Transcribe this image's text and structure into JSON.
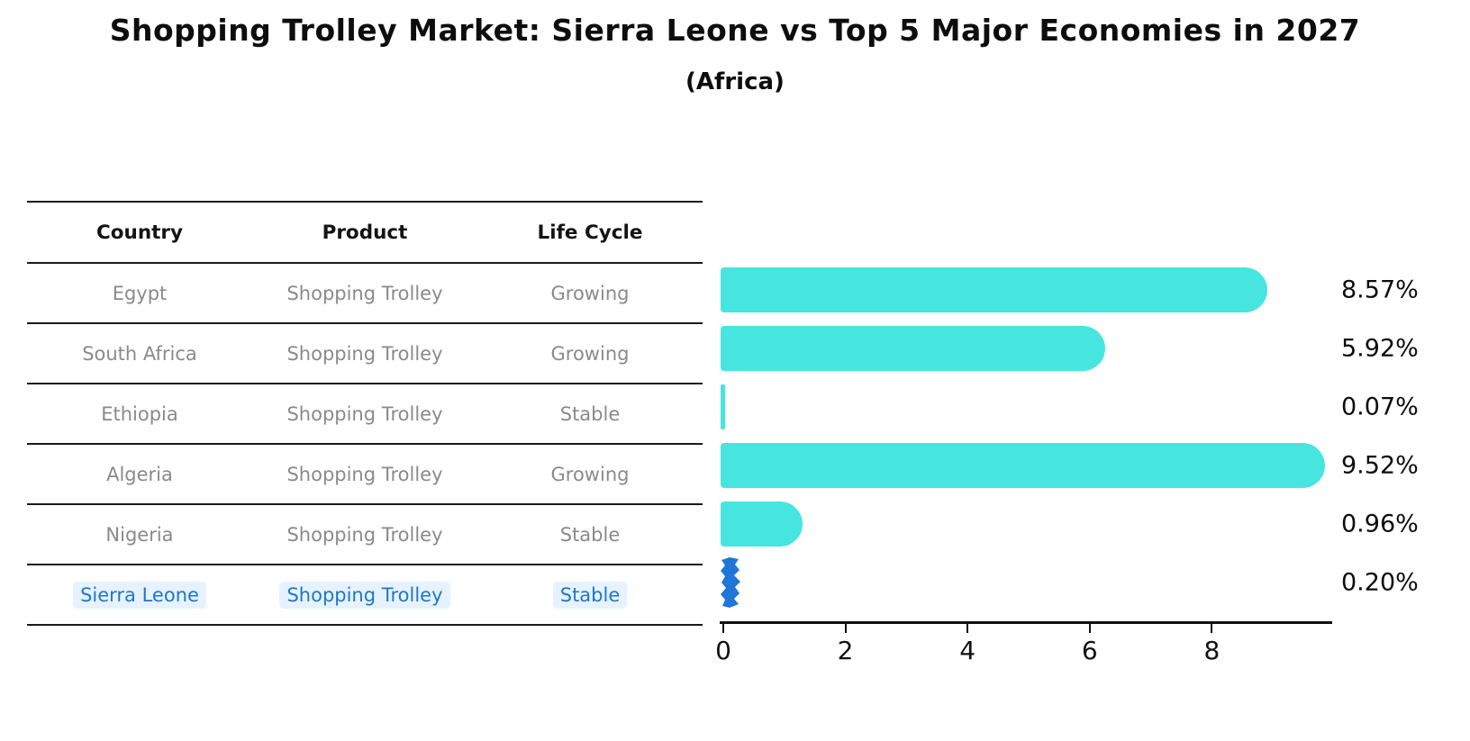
{
  "title": "Shopping Trolley Market: Sierra Leone vs Top 5 Major Economies in 2027",
  "subtitle": "(Africa)",
  "table": {
    "headers": [
      "Country",
      "Product",
      "Life Cycle"
    ],
    "rows": [
      {
        "country": "Egypt",
        "product": "Shopping Trolley",
        "life_cycle": "Growing",
        "highlight": false
      },
      {
        "country": "South Africa",
        "product": "Shopping Trolley",
        "life_cycle": "Growing",
        "highlight": false
      },
      {
        "country": "Ethiopia",
        "product": "Shopping Trolley",
        "life_cycle": "Stable",
        "highlight": false
      },
      {
        "country": "Algeria",
        "product": "Shopping Trolley",
        "life_cycle": "Growing",
        "highlight": false
      },
      {
        "country": "Nigeria",
        "product": "Shopping Trolley",
        "life_cycle": "Stable",
        "highlight": false
      },
      {
        "country": "Sierra Leone",
        "product": "Shopping Trolley",
        "life_cycle": "Stable",
        "highlight": true
      }
    ]
  },
  "chart_data": {
    "type": "bar",
    "orientation": "horizontal",
    "categories": [
      "Egypt",
      "South Africa",
      "Ethiopia",
      "Algeria",
      "Nigeria",
      "Sierra Leone"
    ],
    "values": [
      8.57,
      5.92,
      0.07,
      9.52,
      0.96,
      0.2
    ],
    "value_labels": [
      "8.57%",
      "5.92%",
      "0.07%",
      "9.52%",
      "0.96%",
      "0.20%"
    ],
    "x_ticks": [
      "0",
      "2",
      "4",
      "6",
      "8"
    ],
    "x_tick_values": [
      0,
      2,
      4,
      6,
      8
    ],
    "xlim": [
      0,
      10
    ],
    "grid": false,
    "legend": "none",
    "bar_color": "#46E5E0",
    "highlight_color": "#1F76D8",
    "highlight_index": 5,
    "highlight_style": "jagged"
  },
  "colors": {
    "background": "#ffffff",
    "table_line": "#1a1a1a",
    "cell_text": "#8a8a8a",
    "header_text": "#141414",
    "highlight_text": "#1f77c9",
    "axis": "#111111"
  }
}
